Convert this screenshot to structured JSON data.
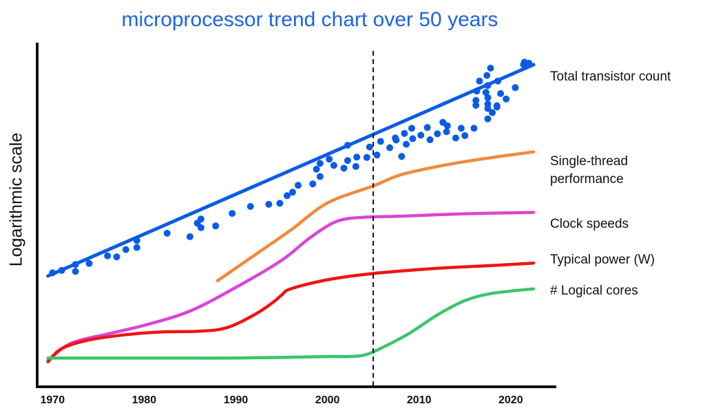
{
  "chart_data": {
    "type": "line",
    "title": "microprocessor trend chart over 50 years",
    "xlabel": "",
    "ylabel": "Logarithmic scale",
    "xlim": [
      1969,
      2024
    ],
    "ylim": [
      0,
      100
    ],
    "y_scale": "log",
    "grid": false,
    "legend": "right",
    "x_ticks": [
      1970,
      1980,
      1990,
      2000,
      2010,
      2020
    ],
    "reference_line": {
      "x": 2005,
      "style": "dashed"
    },
    "series": [
      {
        "name": "Total transistor count",
        "color": "#0a5ce6",
        "trend": [
          [
            1969.5,
            30.5
          ],
          [
            2022.5,
            91.3
          ]
        ],
        "points": [
          [
            1970,
            31.4
          ],
          [
            1971,
            32.1
          ],
          [
            1972.5,
            33.8
          ],
          [
            1972.5,
            31.8
          ],
          [
            1974,
            34.1
          ],
          [
            1976,
            36.3
          ],
          [
            1977,
            36.0
          ],
          [
            1978,
            38.1
          ],
          [
            1979.2,
            38.7
          ],
          [
            1979.2,
            40.7
          ],
          [
            1982.5,
            42.8
          ],
          [
            1985,
            41.8
          ],
          [
            1985.8,
            45.7
          ],
          [
            1986.2,
            46.9
          ],
          [
            1986.2,
            44.4
          ],
          [
            1987.8,
            44.9
          ],
          [
            1989.6,
            48.5
          ],
          [
            1991.6,
            50.5
          ],
          [
            1993.6,
            51.1
          ],
          [
            1994.8,
            51.4
          ],
          [
            1995.6,
            53.6
          ],
          [
            1996.2,
            54.6
          ],
          [
            1996.8,
            56.6
          ],
          [
            1998.4,
            57.0
          ],
          [
            1999.2,
            59.1
          ],
          [
            1998.8,
            61.2
          ],
          [
            1999.2,
            62.9
          ],
          [
            2000.2,
            64.1
          ],
          [
            2000.7,
            62.3
          ],
          [
            2001.8,
            61.5
          ],
          [
            2002.2,
            63.7
          ],
          [
            2003.1,
            62.0
          ],
          [
            2003.2,
            64.7
          ],
          [
            2004.3,
            64.6
          ],
          [
            2005.4,
            65.3
          ],
          [
            2002.2,
            68.1
          ],
          [
            2004.6,
            67.6
          ],
          [
            2005.8,
            69.2
          ],
          [
            2006.8,
            67.4
          ],
          [
            2007.5,
            69.6
          ],
          [
            2008.6,
            68.4
          ],
          [
            2009.3,
            70.0
          ],
          [
            2010.2,
            71.0
          ],
          [
            2008.1,
            64.9
          ],
          [
            2007.4,
            70.2
          ],
          [
            2011.2,
            69.7
          ],
          [
            2012.0,
            71.4
          ],
          [
            2013.0,
            72.0
          ],
          [
            2014.0,
            70.2
          ],
          [
            2015.0,
            70.9
          ],
          [
            2016.0,
            73.0
          ],
          [
            2017.5,
            75.7
          ],
          [
            2018.5,
            79.1
          ],
          [
            2019.5,
            81.4
          ],
          [
            2020.5,
            84.7
          ],
          [
            2016.2,
            81.0
          ],
          [
            2017.5,
            80.0
          ],
          [
            2018.5,
            79.5
          ],
          [
            2017.3,
            83.3
          ],
          [
            2017.5,
            85.3
          ],
          [
            2016.2,
            79.6
          ],
          [
            2017.5,
            81.8
          ],
          [
            2016.3,
            83.7
          ],
          [
            2017.5,
            78.7
          ],
          [
            2018.6,
            86.6
          ],
          [
            2021.5,
            92.0
          ],
          [
            2022.0,
            91.7
          ],
          [
            2017.8,
            90.3
          ],
          [
            2016.6,
            86.6
          ],
          [
            2017.4,
            88.2
          ],
          [
            2013.1,
            73.7
          ],
          [
            2021.4,
            91.3
          ],
          [
            2008.4,
            71.5
          ],
          [
            2010.9,
            73.2
          ],
          [
            2012.6,
            74.7
          ],
          [
            2014.6,
            73.0
          ],
          [
            2018.9,
            83.0
          ],
          [
            2018.0,
            77.5
          ],
          [
            2009.2,
            73.0
          ]
        ]
      },
      {
        "name": "Single-thread performance",
        "color": "#f08a3c",
        "curve": [
          [
            1988,
            29.1
          ],
          [
            1992,
            36.4
          ],
          [
            1996,
            43.7
          ],
          [
            2000,
            51.5
          ],
          [
            2005,
            56.4
          ],
          [
            2008,
            59.6
          ],
          [
            2013,
            62.5
          ],
          [
            2018,
            64.6
          ],
          [
            2022.5,
            66.2
          ]
        ]
      },
      {
        "name": "Clock speeds",
        "color": "#d846d4",
        "curve": [
          [
            1969.5,
            6.2
          ],
          [
            1972,
            11.1
          ],
          [
            1976,
            13.8
          ],
          [
            1980,
            16.3
          ],
          [
            1985,
            20.4
          ],
          [
            1990,
            27.2
          ],
          [
            1995,
            35.0
          ],
          [
            1998,
            41.3
          ],
          [
            2001,
            46.2
          ],
          [
            2004,
            47.4
          ],
          [
            2008,
            47.7
          ],
          [
            2015,
            48.4
          ],
          [
            2022.5,
            48.8
          ]
        ]
      },
      {
        "name": "Typical power (W)",
        "color": "#f01414",
        "curve": [
          [
            1969.5,
            5.8
          ],
          [
            1971,
            9.6
          ],
          [
            1974,
            12.1
          ],
          [
            1978,
            13.6
          ],
          [
            1982,
            14.4
          ],
          [
            1986,
            14.6
          ],
          [
            1989,
            15.6
          ],
          [
            1992,
            19.3
          ],
          [
            1994,
            22.8
          ],
          [
            1995,
            25.0
          ],
          [
            1996,
            26.8
          ],
          [
            2000,
            29.4
          ],
          [
            2005,
            31.2
          ],
          [
            2012,
            32.7
          ],
          [
            2018,
            33.5
          ],
          [
            2022.5,
            34.2
          ]
        ]
      },
      {
        "name": "# Logical cores",
        "color": "#3dc46e",
        "curve": [
          [
            1969.5,
            6.9
          ],
          [
            1980,
            6.9
          ],
          [
            1990,
            6.9
          ],
          [
            2000,
            7.3
          ],
          [
            2002,
            7.3
          ],
          [
            2004,
            7.7
          ],
          [
            2006,
            9.9
          ],
          [
            2009,
            14.1
          ],
          [
            2012,
            19.3
          ],
          [
            2015,
            23.4
          ],
          [
            2018,
            25.5
          ],
          [
            2022.5,
            26.8
          ]
        ]
      }
    ]
  }
}
